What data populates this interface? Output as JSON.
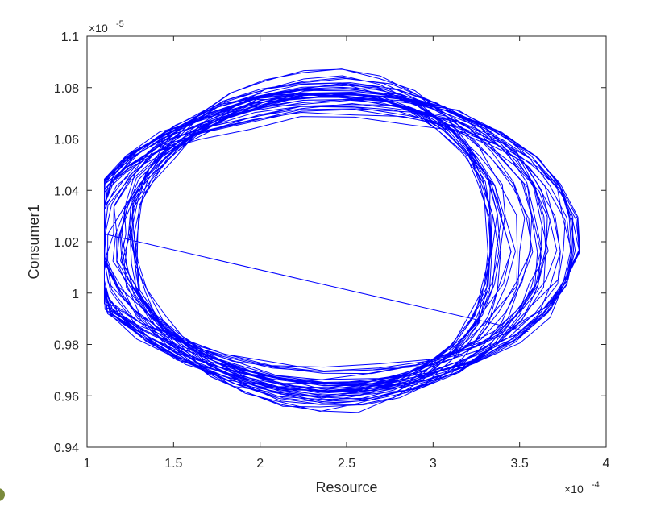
{
  "chart_data": {
    "type": "line",
    "xlabel": "Resource",
    "ylabel": "Consumer1",
    "x_exponent_label": "×10",
    "x_exponent_power": "-4",
    "y_exponent_label": "×10",
    "y_exponent_power": "-5",
    "xlim": [
      1,
      4
    ],
    "ylim": [
      0.94,
      1.1
    ],
    "x_ticks": [
      1,
      1.5,
      2,
      2.5,
      3,
      3.5,
      4
    ],
    "x_tick_labels": [
      "1",
      "1.5",
      "2",
      "2.5",
      "3",
      "3.5",
      "4"
    ],
    "y_ticks": [
      0.94,
      0.96,
      0.98,
      1,
      1.02,
      1.04,
      1.06,
      1.08,
      1.1
    ],
    "y_tick_labels": [
      "0.94",
      "0.96",
      "0.98",
      "1",
      "1.02",
      "1.04",
      "1.06",
      "1.08",
      "1.1"
    ],
    "grid": false,
    "legend": "none",
    "line_color": "#0000ff",
    "trajectory": {
      "center": [
        2.3,
        1.02
      ],
      "radius_x_range": [
        1.0,
        1.45
      ],
      "radius_y_range": [
        0.046,
        0.069
      ],
      "start": [
        1.2,
        1.0
      ],
      "end": [
        3.55,
        0.985
      ],
      "loops": 42,
      "points_per_loop": 30
    }
  }
}
